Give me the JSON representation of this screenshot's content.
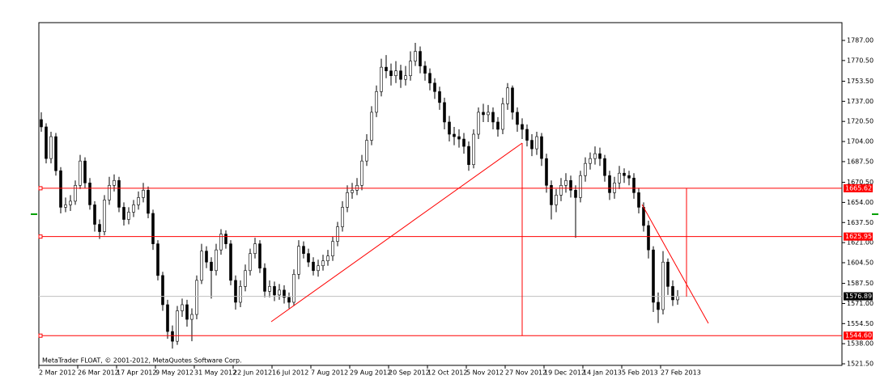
{
  "chart_data": {
    "type": "candlestick",
    "watermark": "MetaTrader FLOAT, © 2001-2012, MetaQuotes Software Corp.",
    "categories": [
      "2 Mar 2012",
      null,
      null,
      null,
      null,
      null,
      null,
      null,
      "26 Mar 2012",
      null,
      null,
      null,
      null,
      null,
      null,
      null,
      "17 Apr 2012",
      null,
      null,
      null,
      null,
      null,
      null,
      null,
      "9 May 2012",
      null,
      null,
      null,
      null,
      null,
      null,
      null,
      "31 May 2012",
      null,
      null,
      null,
      null,
      null,
      null,
      null,
      "22 Jun 2012",
      null,
      null,
      null,
      null,
      null,
      null,
      null,
      "16 Jul 2012",
      null,
      null,
      null,
      null,
      null,
      null,
      null,
      "7 Aug 2012",
      null,
      null,
      null,
      null,
      null,
      null,
      null,
      "29 Aug 2012",
      null,
      null,
      null,
      null,
      null,
      null,
      null,
      "20 Sep 2012",
      null,
      null,
      null,
      null,
      null,
      null,
      null,
      "12 Oct 2012",
      null,
      null,
      null,
      null,
      null,
      null,
      null,
      "5 Nov 2012",
      null,
      null,
      null,
      null,
      null,
      null,
      null,
      "27 Nov 2012",
      null,
      null,
      null,
      null,
      null,
      null,
      null,
      "19 Dec 2012",
      null,
      null,
      null,
      null,
      null,
      null,
      null,
      "14 Jan 2013",
      null,
      null,
      null,
      null,
      null,
      null,
      null,
      "5 Feb 2013",
      null,
      null,
      null,
      null,
      null,
      null,
      null,
      "27 Feb 2013",
      null,
      null,
      null
    ],
    "open": [
      1722,
      1716,
      1690,
      1708,
      1680,
      1650,
      1652,
      1655,
      1668,
      1688,
      1670,
      1652,
      1636,
      1630,
      1656,
      1668,
      1672,
      1650,
      1640,
      1646,
      1652,
      1658,
      1664,
      1645,
      1620,
      1594,
      1570,
      1548,
      1540,
      1565,
      1570,
      1558,
      1562,
      1590,
      1614,
      1605,
      1598,
      1615,
      1628,
      1620,
      1590,
      1572,
      1585,
      1598,
      1612,
      1620,
      1600,
      1581,
      1585,
      1578,
      1582,
      1576,
      1572,
      1595,
      1618,
      1612,
      1605,
      1598,
      1602,
      1606,
      1610,
      1622,
      1634,
      1650,
      1662,
      1664,
      1668,
      1688,
      1705,
      1728,
      1745,
      1765,
      1762,
      1758,
      1762,
      1755,
      1758,
      1770,
      1778,
      1766,
      1760,
      1752,
      1745,
      1736,
      1720,
      1710,
      1708,
      1706,
      1700,
      1685,
      1710,
      1728,
      1726,
      1728,
      1720,
      1714,
      1735,
      1748,
      1728,
      1718,
      1714,
      1705,
      1698,
      1708,
      1690,
      1668,
      1652,
      1660,
      1668,
      1672,
      1664,
      1658,
      1676,
      1686,
      1690,
      1694,
      1690,
      1676,
      1662,
      1670,
      1678,
      1676,
      1674,
      1662,
      1650,
      1635,
      1615,
      1572,
      1566,
      1605,
      1585,
      1574
    ],
    "high": [
      1728,
      1719,
      1712,
      1711,
      1683,
      1658,
      1660,
      1672,
      1693,
      1691,
      1674,
      1655,
      1640,
      1660,
      1675,
      1677,
      1675,
      1654,
      1650,
      1656,
      1663,
      1670,
      1667,
      1648,
      1623,
      1597,
      1574,
      1553,
      1569,
      1575,
      1574,
      1567,
      1594,
      1620,
      1618,
      1609,
      1620,
      1632,
      1631,
      1623,
      1594,
      1590,
      1603,
      1616,
      1625,
      1623,
      1604,
      1590,
      1589,
      1587,
      1586,
      1580,
      1599,
      1623,
      1622,
      1616,
      1609,
      1607,
      1611,
      1615,
      1626,
      1638,
      1655,
      1668,
      1670,
      1674,
      1693,
      1710,
      1733,
      1750,
      1772,
      1775,
      1768,
      1770,
      1767,
      1766,
      1778,
      1785,
      1782,
      1770,
      1764,
      1756,
      1749,
      1740,
      1725,
      1716,
      1714,
      1711,
      1704,
      1714,
      1732,
      1735,
      1734,
      1732,
      1724,
      1740,
      1752,
      1750,
      1732,
      1723,
      1718,
      1710,
      1712,
      1711,
      1694,
      1672,
      1665,
      1674,
      1678,
      1676,
      1668,
      1680,
      1691,
      1695,
      1700,
      1699,
      1693,
      1680,
      1675,
      1684,
      1682,
      1680,
      1678,
      1666,
      1654,
      1639,
      1618,
      1580,
      1614,
      1608,
      1590,
      1582
    ],
    "low": [
      1712,
      1686,
      1686,
      1676,
      1645,
      1646,
      1647,
      1652,
      1665,
      1666,
      1648,
      1630,
      1624,
      1627,
      1652,
      1663,
      1646,
      1635,
      1636,
      1642,
      1648,
      1654,
      1641,
      1615,
      1590,
      1565,
      1542,
      1534,
      1537,
      1560,
      1552,
      1540,
      1558,
      1587,
      1600,
      1575,
      1594,
      1611,
      1616,
      1586,
      1566,
      1568,
      1581,
      1594,
      1608,
      1596,
      1576,
      1576,
      1573,
      1574,
      1571,
      1567,
      1569,
      1591,
      1608,
      1601,
      1594,
      1593,
      1598,
      1602,
      1606,
      1618,
      1630,
      1646,
      1657,
      1660,
      1664,
      1684,
      1701,
      1724,
      1741,
      1756,
      1750,
      1752,
      1748,
      1750,
      1754,
      1766,
      1760,
      1754,
      1746,
      1739,
      1730,
      1714,
      1704,
      1701,
      1699,
      1694,
      1680,
      1682,
      1706,
      1720,
      1720,
      1714,
      1708,
      1710,
      1730,
      1722,
      1712,
      1706,
      1700,
      1692,
      1693,
      1684,
      1662,
      1640,
      1646,
      1655,
      1662,
      1658,
      1625,
      1654,
      1671,
      1681,
      1685,
      1684,
      1671,
      1656,
      1657,
      1665,
      1670,
      1668,
      1657,
      1645,
      1630,
      1608,
      1564,
      1555,
      1562,
      1578,
      1569,
      1570
    ],
    "close": [
      1716,
      1690,
      1708,
      1680,
      1650,
      1652,
      1655,
      1668,
      1688,
      1670,
      1652,
      1636,
      1630,
      1656,
      1668,
      1672,
      1650,
      1640,
      1646,
      1652,
      1658,
      1664,
      1645,
      1620,
      1594,
      1570,
      1548,
      1540,
      1565,
      1570,
      1558,
      1562,
      1590,
      1614,
      1605,
      1598,
      1615,
      1628,
      1620,
      1590,
      1572,
      1585,
      1598,
      1612,
      1620,
      1600,
      1581,
      1585,
      1578,
      1582,
      1576,
      1572,
      1595,
      1618,
      1612,
      1605,
      1598,
      1602,
      1606,
      1610,
      1622,
      1634,
      1650,
      1662,
      1664,
      1668,
      1688,
      1705,
      1728,
      1745,
      1765,
      1762,
      1758,
      1762,
      1755,
      1758,
      1770,
      1778,
      1766,
      1760,
      1752,
      1745,
      1736,
      1720,
      1710,
      1708,
      1706,
      1700,
      1685,
      1710,
      1728,
      1726,
      1728,
      1720,
      1714,
      1735,
      1748,
      1728,
      1718,
      1714,
      1705,
      1698,
      1708,
      1690,
      1668,
      1652,
      1660,
      1668,
      1672,
      1664,
      1658,
      1676,
      1686,
      1690,
      1694,
      1690,
      1676,
      1662,
      1670,
      1678,
      1676,
      1674,
      1662,
      1650,
      1635,
      1615,
      1572,
      1566,
      1605,
      1585,
      1574,
      1577
    ],
    "up_color": "#ffffff",
    "down_color": "#000000",
    "wick_color": "#000000",
    "ylim": [
      1520.2,
      1801.6
    ],
    "yticks": [
      {
        "value": 1787,
        "label": "1787.00"
      },
      {
        "value": 1770.5,
        "label": "1770.50"
      },
      {
        "value": 1753.5,
        "label": "1753.50"
      },
      {
        "value": 1737,
        "label": "1737.00"
      },
      {
        "value": 1720.5,
        "label": "1720.50"
      },
      {
        "value": 1704,
        "label": "1704.00"
      },
      {
        "value": 1687.5,
        "label": "1687.50"
      },
      {
        "value": 1670.5,
        "label": "1670.50"
      },
      {
        "value": 1654,
        "label": "1654.00"
      },
      {
        "value": 1637.5,
        "label": "1637.50"
      },
      {
        "value": 1621,
        "label": "1621.00"
      },
      {
        "value": 1604.5,
        "label": "1604.50"
      },
      {
        "value": 1587.5,
        "label": "1587.50"
      },
      {
        "value": 1571,
        "label": "1571.00"
      },
      {
        "value": 1554.5,
        "label": "1554.50"
      },
      {
        "value": 1538,
        "label": "1538.00"
      },
      {
        "value": 1521.5,
        "label": "1521.50"
      }
    ],
    "levels": [
      {
        "value": 1665.62,
        "color": "#ff0000"
      },
      {
        "value": 1625.95,
        "color": "#ff0000"
      },
      {
        "value": 1544.6,
        "label": "1544.60",
        "color": "#ff0000"
      },
      {
        "value": 1576.89,
        "color": "#c0c0c0",
        "label_color": "#000000"
      }
    ]
  }
}
